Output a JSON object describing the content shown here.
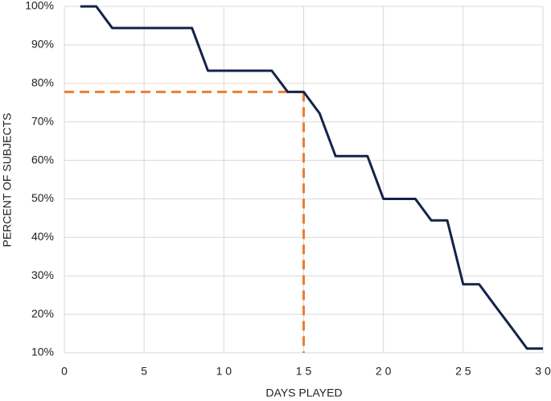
{
  "chart_data": {
    "type": "line",
    "x_label": "DAYS PLAYED",
    "y_label": "PERCENT OF SUBJECTS",
    "x": [
      1,
      2,
      3,
      4,
      5,
      6,
      7,
      8,
      9,
      10,
      11,
      12,
      13,
      14,
      15,
      16,
      17,
      18,
      19,
      20,
      21,
      22,
      23,
      24,
      25,
      26,
      27,
      28,
      29,
      30
    ],
    "series": [
      {
        "color": "#14234a",
        "values": [
          100,
          100,
          94.4,
          94.4,
          94.4,
          94.4,
          94.4,
          94.4,
          83.3,
          83.3,
          83.3,
          83.3,
          83.3,
          77.8,
          77.8,
          72.2,
          61.1,
          61.1,
          61.1,
          50,
          50,
          50,
          44.4,
          44.4,
          27.8,
          27.8,
          22.2,
          16.7,
          11.1,
          11.1
        ]
      }
    ],
    "reference": {
      "x": 15,
      "y": 77.8,
      "color": "#ed7d31"
    },
    "xlim": [
      0,
      30
    ],
    "ylim": [
      10,
      100
    ],
    "xticks": [
      0,
      5,
      {
        "value": 10,
        "label": "1 0"
      },
      {
        "value": 15,
        "label": "1 5"
      },
      {
        "value": 20,
        "label": "2 0"
      },
      {
        "value": 25,
        "label": "2 5"
      },
      {
        "value": 30,
        "label": "3 0"
      }
    ],
    "yticks": [
      {
        "value": 10,
        "label": "10%"
      },
      {
        "value": 20,
        "label": "20%"
      },
      {
        "value": 30,
        "label": "30%"
      },
      {
        "value": 40,
        "label": "40%"
      },
      {
        "value": 50,
        "label": "50%"
      },
      {
        "value": 60,
        "label": "60%"
      },
      {
        "value": 70,
        "label": "70%"
      },
      {
        "value": 80,
        "label": "80%"
      },
      {
        "value": 90,
        "label": "90%"
      },
      {
        "value": 100,
        "label": "100%"
      }
    ],
    "grid": true
  }
}
